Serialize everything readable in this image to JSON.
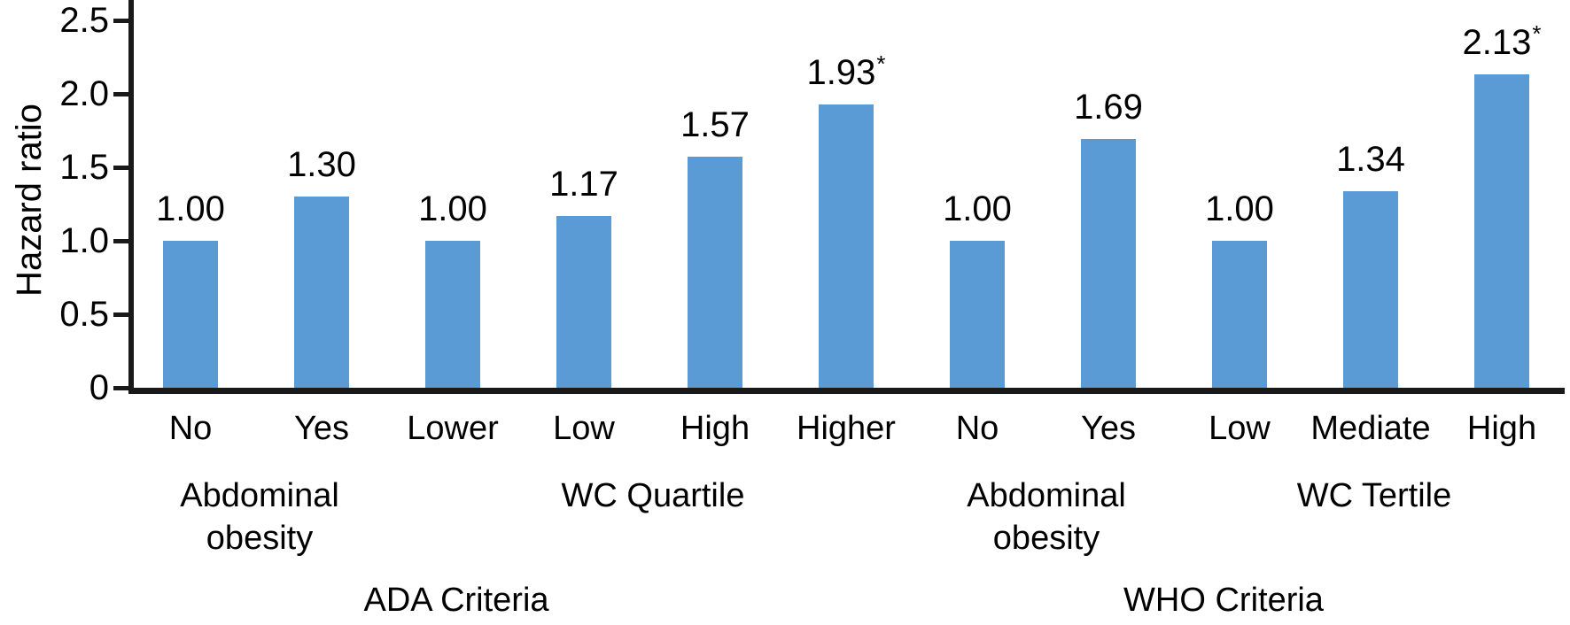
{
  "chart_data": {
    "type": "bar",
    "title": "",
    "xlabel": "",
    "ylabel": "Hazard ratio",
    "ylim": [
      0,
      2.5
    ],
    "ytick_values": [
      0,
      0.5,
      1.0,
      1.5,
      2.0,
      2.5
    ],
    "ytick_labels": [
      "0",
      "0.5",
      "1.0",
      "1.5",
      "2.0",
      "2.5"
    ],
    "grid": false,
    "legend": null,
    "bar_color": "#5b9bd5",
    "axis_color": "#1a1a1a",
    "text_color": "#000000",
    "significance_marker": "*",
    "categories": [
      "No",
      "Yes",
      "Lower",
      "Low",
      "High",
      "Higher",
      "No",
      "Yes",
      "Low",
      "Mediate",
      "High"
    ],
    "values": [
      1.0,
      1.3,
      1.0,
      1.17,
      1.57,
      1.93,
      1.0,
      1.69,
      1.0,
      1.34,
      2.13
    ],
    "value_labels": [
      "1.00",
      "1.30",
      "1.00",
      "1.17",
      "1.57",
      "1.93",
      "1.00",
      "1.69",
      "1.00",
      "1.34",
      "2.13"
    ],
    "significant": [
      false,
      false,
      false,
      false,
      false,
      true,
      false,
      false,
      false,
      false,
      true
    ],
    "groups": [
      {
        "label": "Abdominal obesity",
        "lines": [
          "Abdominal",
          "obesity"
        ],
        "span": [
          0,
          1
        ]
      },
      {
        "label": "WC Quartile",
        "lines": [
          "WC Quartile"
        ],
        "span": [
          2,
          5
        ]
      },
      {
        "label": "Abdominal obesity",
        "lines": [
          "Abdominal",
          "obesity"
        ],
        "span": [
          6,
          7
        ]
      },
      {
        "label": "WC Tertile",
        "lines": [
          "WC Tertile"
        ],
        "span": [
          8,
          10
        ]
      }
    ],
    "criteria": [
      {
        "label": "ADA Criteria",
        "span": [
          0,
          5
        ]
      },
      {
        "label": "WHO Criteria",
        "span": [
          6,
          10
        ]
      }
    ]
  }
}
